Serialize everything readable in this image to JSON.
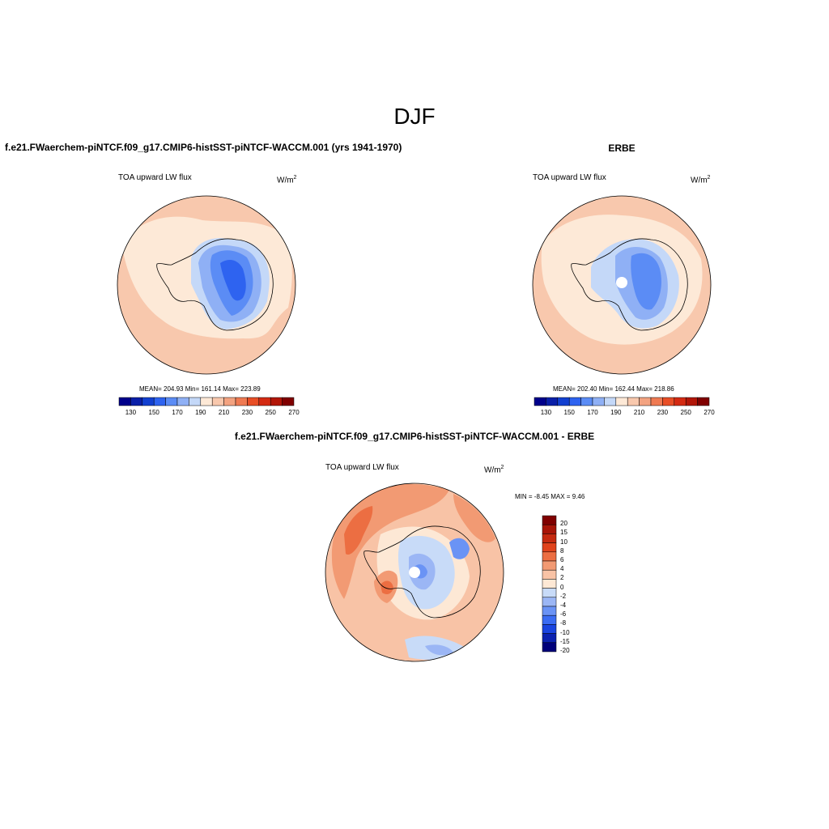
{
  "figure": {
    "title": "DJF"
  },
  "panels": {
    "model": {
      "title": "f.e21.FWaerchem-piNTCF.f09_g17.CMIP6-histSST-piNTCF-WACCM.001 (yrs 1941-1970)",
      "variable": "TOA upward LW flux",
      "units": "W/m",
      "units_exp": "2",
      "stats": "MEAN= 204.93  Min= 161.14  Max= 223.89",
      "colorbar_labels": [
        "130",
        "150",
        "170",
        "190",
        "210",
        "230",
        "250",
        "270"
      ]
    },
    "obs": {
      "title": "ERBE",
      "variable": "TOA upward LW flux",
      "units": "W/m",
      "units_exp": "2",
      "stats": "MEAN= 202.40  Min= 162.44  Max= 218.86",
      "colorbar_labels": [
        "130",
        "150",
        "170",
        "190",
        "210",
        "230",
        "250",
        "270"
      ]
    },
    "diff": {
      "title": "f.e21.FWaerchem-piNTCF.f09_g17.CMIP6-histSST-piNTCF-WACCM.001 - ERBE",
      "variable": "TOA upward LW flux",
      "units": "W/m",
      "units_exp": "2",
      "stats": "MIN =  -8.45 MAX =   9.46",
      "colorbar_labels": [
        "20",
        "15",
        "10",
        "8",
        "6",
        "4",
        "2",
        "0",
        "-2",
        "-4",
        "-6",
        "-8",
        "-10",
        "-15",
        "-20"
      ]
    }
  },
  "colors": {
    "abs_scale": [
      "#00008b",
      "#0a1fa8",
      "#1240d0",
      "#2e63f0",
      "#5b8cf5",
      "#8fb0f5",
      "#c4d8f8",
      "#fde9d7",
      "#f8c8ad",
      "#f3a381",
      "#ef7a52",
      "#e84e26",
      "#d42a12",
      "#b21608",
      "#800000"
    ],
    "diff_scale": [
      "#00007a",
      "#0b22b0",
      "#1a45e0",
      "#3b6cf3",
      "#6a93f5",
      "#9bb6f5",
      "#c8dbf8",
      "#fde8d5",
      "#f8c3a6",
      "#f29a73",
      "#ec6e42",
      "#e0431c",
      "#c52a10",
      "#a81508",
      "#800000"
    ]
  }
}
